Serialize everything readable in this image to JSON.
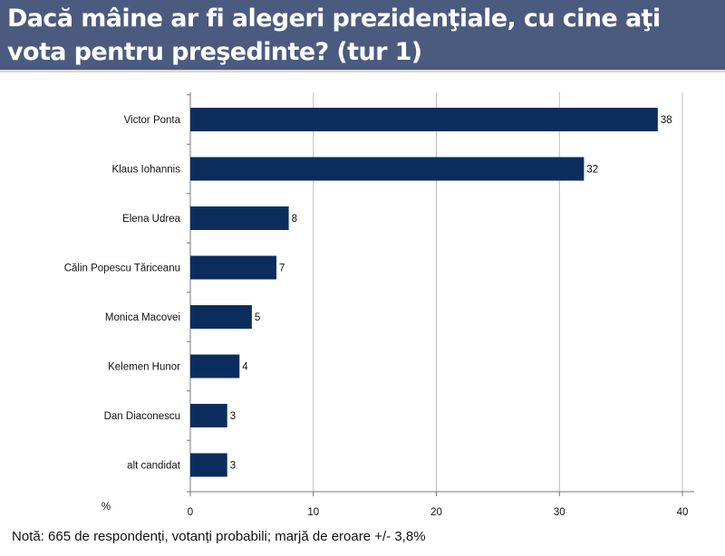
{
  "header": {
    "title": "Dacă mâine ar fi alegeri prezidenţiale, cu cine aţi vota pentru preşedinte? (tur 1)"
  },
  "note": "Notă: 665 de respondenți, votanți probabili; marjă de eroare +/- 3,8%",
  "colors": {
    "bar": "#0b2d5e",
    "header": "#4b5a7f",
    "grid": "#bdbdbd"
  },
  "chart_data": {
    "type": "bar",
    "orientation": "horizontal",
    "title": "Dacă mâine ar fi alegeri prezidenţiale, cu cine aţi vota pentru preşedinte? (tur 1)",
    "categories": [
      "Victor Ponta",
      "Klaus Iohannis",
      "Elena Udrea",
      "Călin Popescu Tăriceanu",
      "Monica Macovei",
      "Kelemen Hunor",
      "Dan Diaconescu",
      "alt candidat"
    ],
    "values": [
      38,
      32,
      8,
      7,
      5,
      4,
      3,
      3
    ],
    "xlabel": "%",
    "xlim": [
      0,
      40
    ],
    "xticks": [
      0,
      10,
      20,
      30,
      40
    ],
    "grid": true,
    "legend": "none"
  }
}
